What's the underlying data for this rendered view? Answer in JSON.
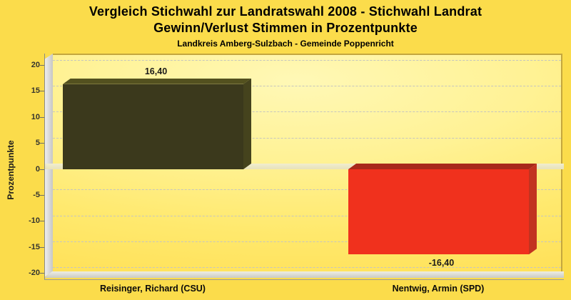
{
  "title": {
    "line1": "Vergleich Stichwahl zur Landratswahl 2008 - Stichwahl Landrat",
    "line2": "Gewinn/Verlust Stimmen in Prozentpunkte"
  },
  "subtitle": "Landkreis Amberg-Sulzbach - Gemeinde Poppenricht",
  "chart_data": {
    "type": "bar",
    "style_3d": true,
    "title": "Vergleich Stichwahl zur Landratswahl 2008 - Stichwahl Landrat Gewinn/Verlust Stimmen in Prozentpunkte",
    "subtitle": "Landkreis Amberg-Sulzbach - Gemeinde Poppenricht",
    "categories": [
      "Reisinger, Richard (CSU)",
      "Nentwig, Armin (SPD)"
    ],
    "values": [
      16.4,
      -16.4
    ],
    "value_labels": [
      "16,40",
      "-16,40"
    ],
    "xlabel": "",
    "ylabel": "Prozentpunkte",
    "ylim": [
      -20,
      20
    ],
    "yticks": [
      20,
      15,
      10,
      5,
      0,
      -5,
      -10,
      -15,
      -20
    ],
    "ytick_labels": [
      "20",
      "15",
      "10",
      "5",
      "0",
      "-5",
      "-10",
      "-15",
      "-20"
    ],
    "grid": true,
    "gridline_style": "dashed",
    "legend_position": "none",
    "bars": [
      {
        "value": 16.4,
        "label": "16,40",
        "front": "#3B391C",
        "top": "#53511F",
        "side": "#45431D"
      },
      {
        "value": -16.4,
        "label": "-16,40",
        "front": "#F0311D",
        "top": "#A8291B",
        "side": "#C23320"
      }
    ],
    "colors": {
      "background": "#FBDC4B",
      "plot_fill_light": "#FFF8B6",
      "plot_fill_dark": "#FFE159",
      "plot_border": "#C4A73E",
      "gridline": "#C5C5BF",
      "wall": "#DDDDDD",
      "zero_band": "#EDE9C6",
      "bar_positive": "#3B391C",
      "bar_negative": "#F0311D",
      "text": "#1A1A1A"
    }
  }
}
